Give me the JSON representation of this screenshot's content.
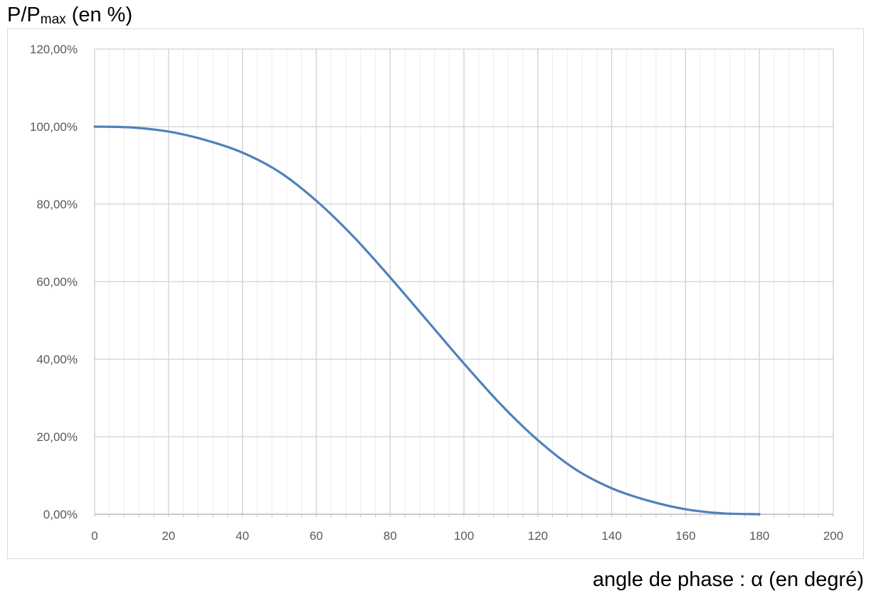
{
  "chart_data": {
    "type": "line",
    "ylabel": {
      "main": "P/P",
      "sub": "max",
      "suffix": " (en %)"
    },
    "xlabel": "angle de phase : α (en degré)",
    "xlim": [
      0,
      200
    ],
    "ylim": [
      0,
      1.2
    ],
    "x_ticks": [
      0,
      20,
      40,
      60,
      80,
      100,
      120,
      140,
      160,
      180,
      200
    ],
    "x_tick_labels": [
      "0",
      "20",
      "40",
      "60",
      "80",
      "100",
      "120",
      "140",
      "160",
      "180",
      "200"
    ],
    "y_ticks": [
      0,
      0.2,
      0.4,
      0.6,
      0.8,
      1.0,
      1.2
    ],
    "y_tick_labels": [
      "0,00%",
      "20,00%",
      "40,00%",
      "60,00%",
      "80,00%",
      "100,00%",
      "120,00%"
    ],
    "x_minor_step": 4,
    "grid": true,
    "series": [
      {
        "color": "#4f81bd",
        "x": [
          0,
          10,
          20,
          30,
          40,
          50,
          60,
          70,
          80,
          90,
          100,
          110,
          120,
          130,
          140,
          150,
          160,
          170,
          180
        ],
        "values": [
          1.0,
          0.9977,
          0.9872,
          0.9653,
          0.933,
          0.883,
          0.8089,
          0.717,
          0.6112,
          0.5,
          0.3888,
          0.283,
          0.1911,
          0.117,
          0.067,
          0.0347,
          0.0128,
          0.0023,
          0.0
        ]
      }
    ]
  }
}
